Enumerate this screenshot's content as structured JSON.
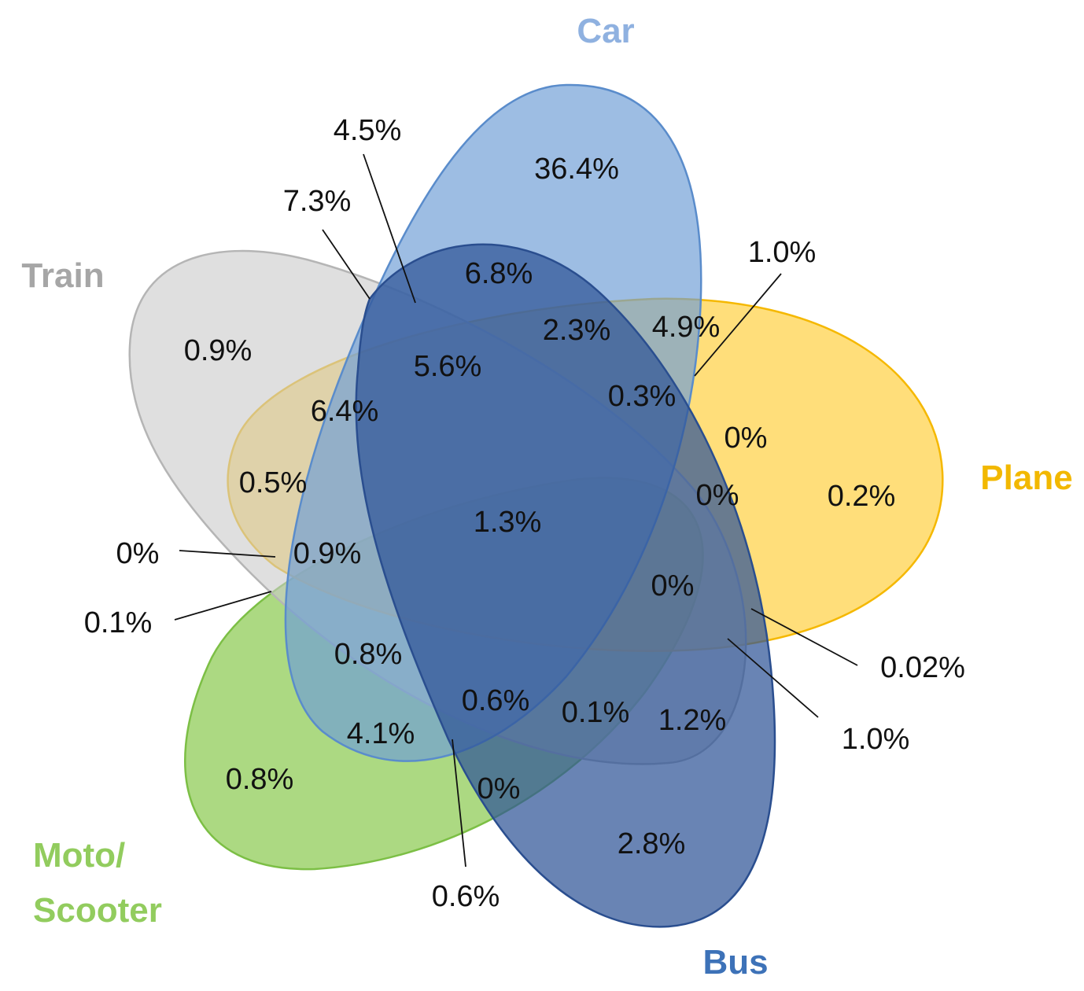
{
  "sets": [
    {
      "key": "train",
      "name": "Train",
      "fill": "#C9C9C9",
      "stroke": "#B5B5B5",
      "label_color": "#A6A6A6"
    },
    {
      "key": "plane",
      "name": "Plane",
      "fill": "#FFC000",
      "stroke": "#F5B800",
      "label_color": "#F2B800"
    },
    {
      "key": "moto",
      "name_lines": [
        "Moto/",
        "Scooter"
      ],
      "fill": "#8CCB52",
      "stroke": "#7CBF45",
      "label_color": "#92CC5E"
    },
    {
      "key": "car",
      "name": "Car",
      "fill": "#6E9DD6",
      "stroke": "#5A8CCB",
      "label_color": "#8FB1E0"
    },
    {
      "key": "bus",
      "name": "Bus",
      "fill": "#2F5597",
      "stroke": "#2A4E8F",
      "label_color": "#3D72B8"
    }
  ],
  "regions": [
    {
      "id": "car-only",
      "value": "36.4%"
    },
    {
      "id": "train-car-a",
      "value": "4.5%"
    },
    {
      "id": "train-car-b",
      "value": "7.3%"
    },
    {
      "id": "train-only",
      "value": "0.9%"
    },
    {
      "id": "car-bus",
      "value": "6.8%"
    },
    {
      "id": "car-bus-plane",
      "value": "2.3%"
    },
    {
      "id": "car-plane",
      "value": "4.9%"
    },
    {
      "id": "car-plane-moto",
      "value": "1.0%"
    },
    {
      "id": "train-car-bus-plane",
      "value": "5.6%"
    },
    {
      "id": "car-bus-plane-moto",
      "value": "0.3%"
    },
    {
      "id": "train-car-plane",
      "value": "6.4%"
    },
    {
      "id": "plane-moto",
      "value": "0%"
    },
    {
      "id": "train-plane",
      "value": "0.5%"
    },
    {
      "id": "plane-only",
      "value": "0.2%"
    },
    {
      "id": "bus-plane-moto",
      "value": "0%"
    },
    {
      "id": "all-five",
      "value": "1.3%"
    },
    {
      "id": "train-plane-moto",
      "value": "0%"
    },
    {
      "id": "train-car-plane-moto",
      "value": "0.9%"
    },
    {
      "id": "bus-moto-plane",
      "value": "0%"
    },
    {
      "id": "train-moto",
      "value": "0.1%"
    },
    {
      "id": "bus-plane",
      "value": "0.02%"
    },
    {
      "id": "train-car-moto",
      "value": "0.8%"
    },
    {
      "id": "bus-plane-2",
      "value": "1.0%"
    },
    {
      "id": "car-bus-moto-train",
      "value": "0.6%"
    },
    {
      "id": "bus-moto-train",
      "value": "0.1%"
    },
    {
      "id": "bus-train",
      "value": "1.2%"
    },
    {
      "id": "car-moto",
      "value": "4.1%"
    },
    {
      "id": "moto-only",
      "value": "0.8%"
    },
    {
      "id": "bus-moto",
      "value": "0%"
    },
    {
      "id": "car-bus-moto",
      "value": "0.6%"
    },
    {
      "id": "bus-only",
      "value": "2.8%"
    }
  ]
}
